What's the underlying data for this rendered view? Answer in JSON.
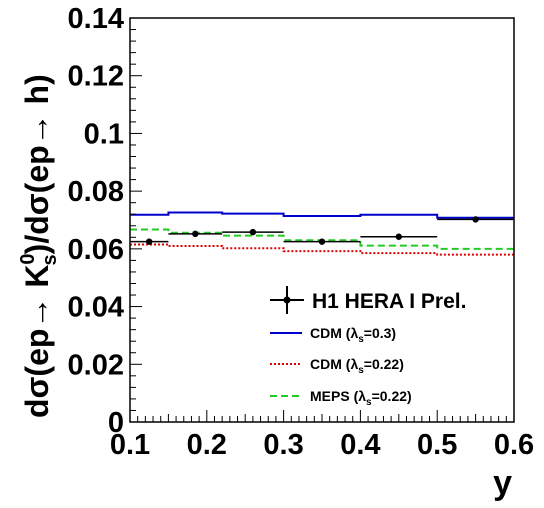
{
  "chart_data": {
    "type": "line",
    "xlabel": "y",
    "ylabel": "dσ(ep→ K0s)/dσ(ep→ h)",
    "ylabel_parts": {
      "a": "dσ(ep",
      "b": "K",
      "sup": "0",
      "sub": "s",
      "c": ")/dσ(ep",
      "d": " h)"
    },
    "xlim": [
      0.1,
      0.6
    ],
    "ylim": [
      0,
      0.14
    ],
    "x_ticks": [
      "0.1",
      "0.2",
      "0.3",
      "0.4",
      "0.5",
      "0.6"
    ],
    "y_ticks": [
      "0",
      "0.02",
      "0.04",
      "0.06",
      "0.08",
      "0.1",
      "0.12",
      "0.14"
    ],
    "grid": false,
    "legend_position": "bottom-right",
    "data_series": {
      "name": "H1 HERA I Prel.",
      "points": [
        {
          "x": 0.125,
          "y": 0.0625,
          "xerr": [
            0.1,
            0.15
          ]
        },
        {
          "x": 0.185,
          "y": 0.0652,
          "xerr": [
            0.15,
            0.22
          ]
        },
        {
          "x": 0.26,
          "y": 0.0658,
          "xerr": [
            0.22,
            0.3
          ]
        },
        {
          "x": 0.35,
          "y": 0.0625,
          "xerr": [
            0.3,
            0.4
          ]
        },
        {
          "x": 0.45,
          "y": 0.0642,
          "xerr": [
            0.4,
            0.5
          ]
        },
        {
          "x": 0.55,
          "y": 0.0702,
          "xerr": [
            0.5,
            0.6
          ]
        }
      ]
    },
    "mc_series": [
      {
        "label": "CDM (",
        "lambda_sub": "s",
        "lambda_value": "=0.3)",
        "color": "#0000cc",
        "dash": "solid",
        "bins": [
          [
            0.1,
            0.15,
            0.0718
          ],
          [
            0.15,
            0.22,
            0.0726
          ],
          [
            0.22,
            0.3,
            0.0722
          ],
          [
            0.3,
            0.4,
            0.0714
          ],
          [
            0.4,
            0.5,
            0.0718
          ],
          [
            0.5,
            0.6,
            0.0708
          ]
        ]
      },
      {
        "label": "CDM (",
        "lambda_sub": "s",
        "lambda_value": "=0.22)",
        "color": "#dd0000",
        "dash": "dotted",
        "bins": [
          [
            0.1,
            0.15,
            0.0615
          ],
          [
            0.15,
            0.22,
            0.061
          ],
          [
            0.22,
            0.3,
            0.0602
          ],
          [
            0.3,
            0.4,
            0.0592
          ],
          [
            0.4,
            0.5,
            0.0585
          ],
          [
            0.5,
            0.6,
            0.058
          ]
        ]
      },
      {
        "label": "MEPS (",
        "lambda_sub": "s",
        "lambda_value": "=0.22)",
        "color": "#22cc22",
        "dash": "dashed",
        "bins": [
          [
            0.1,
            0.15,
            0.0667
          ],
          [
            0.15,
            0.22,
            0.0656
          ],
          [
            0.22,
            0.3,
            0.0646
          ],
          [
            0.3,
            0.4,
            0.063
          ],
          [
            0.4,
            0.5,
            0.0611
          ],
          [
            0.5,
            0.6,
            0.06
          ]
        ]
      }
    ]
  }
}
